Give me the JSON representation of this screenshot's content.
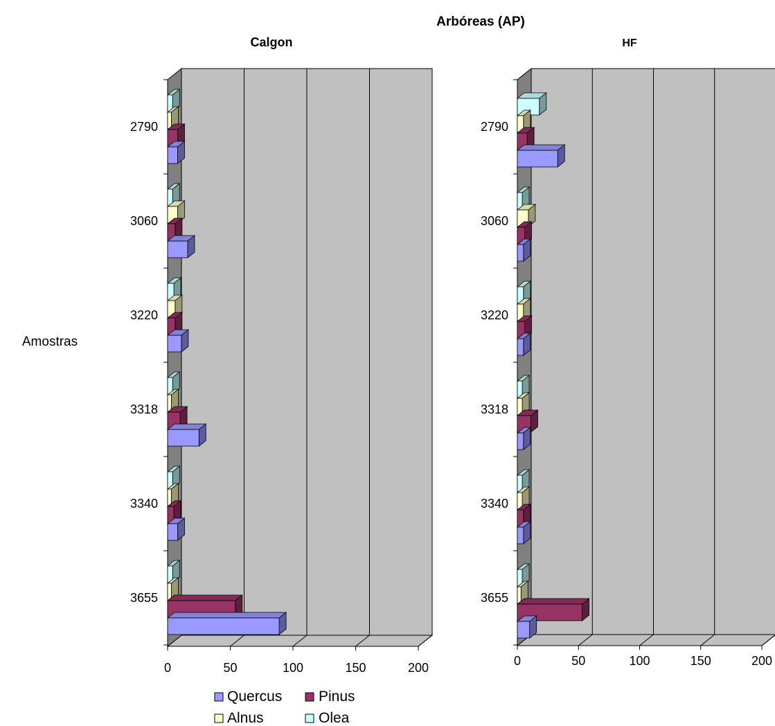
{
  "chart_data": {
    "type": "bar",
    "orientation": "horizontal",
    "style": "3d-clustered",
    "title": "Arbóreas (AP)",
    "ylabel": "Amostras",
    "categories": [
      "2790",
      "3060",
      "3220",
      "3318",
      "3340",
      "3655"
    ],
    "xlim": [
      0,
      200
    ],
    "xticks": [
      0,
      50,
      100,
      150,
      200
    ],
    "grid": true,
    "legend_position": "bottom",
    "colors": {
      "Quercus": "#9999ff",
      "Pinus": "#993366",
      "Alnus": "#ffffcc",
      "Olea": "#ccffff",
      "wall": "#c0c0c0",
      "floor": "#c0c0c0"
    },
    "panels": [
      {
        "title": "Calgon",
        "series": [
          {
            "name": "Quercus",
            "values": [
              8,
              16,
              11,
              25,
              8,
              89
            ]
          },
          {
            "name": "Pinus",
            "values": [
              8,
              6,
              6,
              10,
              5,
              54
            ]
          },
          {
            "name": "Alnus",
            "values": [
              3,
              8,
              6,
              3,
              3,
              3
            ]
          },
          {
            "name": "Olea",
            "values": [
              4,
              4,
              5,
              4,
              4,
              4
            ]
          }
        ]
      },
      {
        "title": "HF",
        "series": [
          {
            "name": "Quercus",
            "values": [
              33,
              5,
              5,
              5,
              5,
              10
            ]
          },
          {
            "name": "Pinus",
            "values": [
              8,
              6,
              6,
              11,
              5,
              53
            ]
          },
          {
            "name": "Alnus",
            "values": [
              5,
              9,
              5,
              4,
              4,
              3
            ]
          },
          {
            "name": "Olea",
            "values": [
              18,
              4,
              5,
              4,
              4,
              4
            ]
          }
        ]
      }
    ]
  }
}
